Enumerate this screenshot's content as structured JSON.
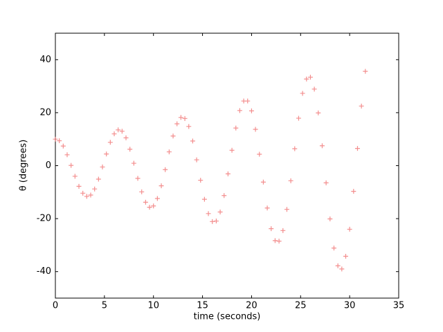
{
  "chart_data": {
    "type": "scatter",
    "xlabel": "time (seconds)",
    "ylabel": "θ (degrees)",
    "xlim": [
      0,
      35
    ],
    "xticks": [
      0,
      5,
      10,
      15,
      20,
      25,
      30,
      35
    ],
    "ylim": [
      -50,
      50
    ],
    "yticks": [
      -40,
      -20,
      0,
      20,
      40
    ],
    "marker": "+",
    "color": "#f07070",
    "grid": false,
    "x": [
      0,
      0.4,
      0.8,
      1.2,
      1.6,
      2.0,
      2.4,
      2.8,
      3.2,
      3.6,
      4.0,
      4.4,
      4.8,
      5.2,
      5.6,
      6.0,
      6.4,
      6.8,
      7.2,
      7.6,
      8.0,
      8.4,
      8.8,
      9.2,
      9.6,
      10.0,
      10.4,
      10.8,
      11.2,
      11.6,
      12.0,
      12.4,
      12.8,
      13.2,
      13.6,
      14.0,
      14.4,
      14.8,
      15.2,
      15.6,
      16.0,
      16.4,
      16.8,
      17.2,
      17.6,
      18.0,
      18.4,
      18.8,
      19.2,
      19.6,
      20.0,
      20.4,
      20.8,
      21.2,
      21.6,
      22.0,
      22.4,
      22.8,
      23.2,
      23.6,
      24.0,
      24.4,
      24.8,
      25.2,
      25.6,
      26.0,
      26.4,
      26.8,
      27.2,
      27.6,
      28.0,
      28.4,
      28.8,
      29.2,
      29.6,
      30.0,
      30.4,
      30.8,
      31.2,
      31.6
    ],
    "values": [
      10,
      9.4,
      7.4,
      4.1,
      0.1,
      -4.0,
      -7.8,
      -10.4,
      -11.6,
      -11.1,
      -8.8,
      -5.1,
      -0.5,
      4.4,
      8.8,
      12.0,
      13.5,
      13.0,
      10.5,
      6.2,
      0.9,
      -4.8,
      -9.9,
      -13.8,
      -15.7,
      -15.2,
      -12.4,
      -7.6,
      -1.5,
      5.2,
      11.2,
      15.8,
      18.2,
      17.8,
      14.8,
      9.3,
      2.2,
      -5.5,
      -12.7,
      -18.1,
      -21.1,
      -20.9,
      -17.5,
      -11.3,
      -3.1,
      5.8,
      14.2,
      20.8,
      24.4,
      24.4,
      20.7,
      13.7,
      4.3,
      -6.2,
      -16.0,
      -23.8,
      -28.3,
      -28.5,
      -24.5,
      -16.5,
      -5.7,
      6.4,
      17.9,
      27.3,
      32.7,
      33.4,
      28.9,
      19.9,
      7.5,
      -6.5,
      -20.1,
      -31.1,
      -37.8,
      -39.0,
      -34.2,
      -24.0,
      -9.7,
      6.5,
      22.5,
      35.6
    ]
  }
}
